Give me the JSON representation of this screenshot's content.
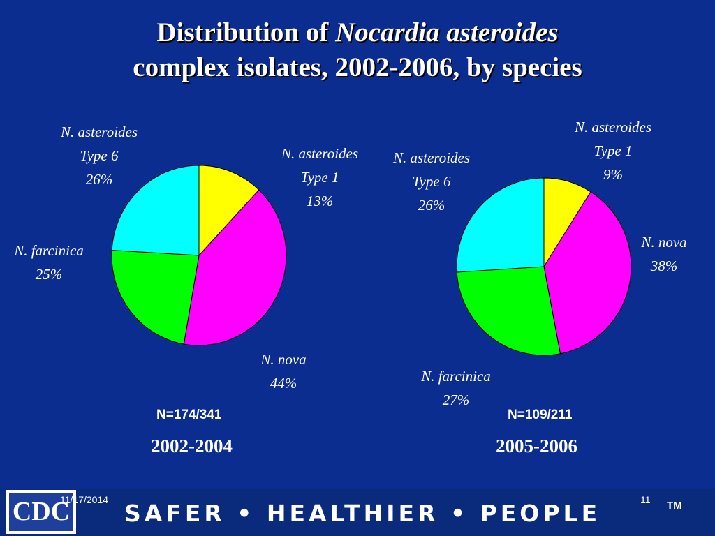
{
  "title": {
    "line1_prefix": "Distribution of ",
    "line1_italic": "Nocardia asteroides",
    "line2": "complex isolates, 2002-2006, by species"
  },
  "chart_data": [
    {
      "type": "pie",
      "title": "2002-2004",
      "n_label": "N=174/341",
      "slices": [
        {
          "label": "N. asteroides Type 1",
          "value": 13,
          "value_label": "13%",
          "color": "#ffff00"
        },
        {
          "label": "N. nova",
          "value": 44,
          "value_label": "44%",
          "color": "#ff00ff"
        },
        {
          "label": "N. farcinica",
          "value": 25,
          "value_label": "25%",
          "color": "#00ff00"
        },
        {
          "label": "N. asteroides Type 6",
          "value": 26,
          "value_label": "26%",
          "color": "#00ffff"
        }
      ]
    },
    {
      "type": "pie",
      "title": "2005-2006",
      "n_label": "N=109/211",
      "slices": [
        {
          "label": "N. asteroides Type 1",
          "value": 9,
          "value_label": "9%",
          "color": "#ffff00"
        },
        {
          "label": "N. nova",
          "value": 38,
          "value_label": "38%",
          "color": "#ff00ff"
        },
        {
          "label": "N. farcinica",
          "value": 27,
          "value_label": "27%",
          "color": "#00ff00"
        },
        {
          "label": "N. asteroides Type 6",
          "value": 26,
          "value_label": "26%",
          "color": "#00ffff"
        }
      ]
    }
  ],
  "labels": {
    "left": {
      "type6": [
        "N. asteroides",
        "Type 6",
        "26%"
      ],
      "type1": [
        "N. asteroides",
        "Type 1",
        "13%"
      ],
      "farcinica": [
        "N. farcinica",
        "25%"
      ],
      "nova": [
        "N. nova",
        "44%"
      ]
    },
    "right": {
      "type6": [
        "N. asteroides",
        "Type 6",
        "26%"
      ],
      "type1": [
        "N. asteroides",
        "Type 1",
        "9%"
      ],
      "farcinica": [
        "N. farcinica",
        "27%"
      ],
      "nova": [
        "N. nova",
        "38%"
      ]
    }
  },
  "footer": {
    "logo_text": "CDC",
    "date": "11/17/2014",
    "page_number": "11",
    "tagline": "SAFER • HEALTHIER • PEOPLE",
    "trademark": "TM"
  },
  "colors": {
    "background": "#0b2d8f",
    "type1": "#ffff00",
    "nova": "#ff00ff",
    "farcinica": "#00ff00",
    "type6": "#00ffff"
  }
}
